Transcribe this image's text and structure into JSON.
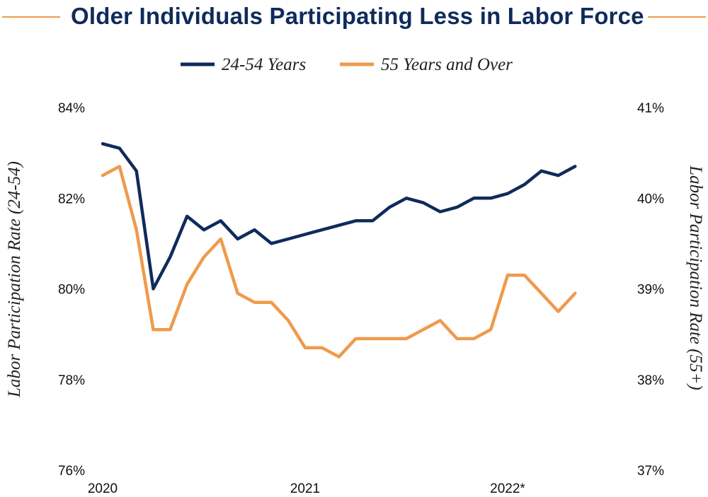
{
  "title": "Older Individuals Participating Less in Labor Force",
  "colors": {
    "title": "#0f2b5b",
    "series_1": "#0f2b5b",
    "series_2": "#ef9a4b",
    "rule": "#ef9a4b"
  },
  "legend": {
    "series_1_label": "24-54 Years",
    "series_2_label": "55 Years and Over"
  },
  "chart_data": {
    "type": "line",
    "title": "Older Individuals Participating Less in Labor Force",
    "xlabel": "",
    "y_left_label": "Labor Participation Rate (24-54)",
    "y_right_label": "Labor Participation Rate (55+)",
    "y_left_ticks": [
      "84%",
      "82%",
      "80%",
      "78%",
      "76%"
    ],
    "y_right_ticks": [
      "41%",
      "40%",
      "39%",
      "38%",
      "37%"
    ],
    "x_ticks": [
      "2020",
      "2021",
      "2022*"
    ],
    "y_left_range": [
      76,
      84
    ],
    "y_right_range": [
      37,
      41
    ],
    "x_range": [
      0,
      30
    ],
    "x_tick_positions": [
      0,
      12,
      24
    ],
    "series": [
      {
        "name": "24-54 Years",
        "axis": "left",
        "values": [
          83.2,
          83.1,
          82.6,
          80.0,
          80.7,
          81.6,
          81.3,
          81.5,
          81.1,
          81.3,
          81.0,
          81.1,
          81.2,
          81.3,
          81.4,
          81.5,
          81.5,
          81.8,
          82.0,
          81.9,
          81.7,
          81.8,
          82.0,
          82.0,
          82.1,
          82.3,
          82.6,
          82.5,
          82.7
        ]
      },
      {
        "name": "55 Years and Over",
        "axis": "right",
        "values": [
          40.25,
          40.35,
          39.65,
          38.55,
          38.55,
          39.05,
          39.35,
          39.55,
          38.95,
          38.85,
          38.85,
          38.65,
          38.35,
          38.35,
          38.25,
          38.45,
          38.45,
          38.45,
          38.45,
          38.55,
          38.65,
          38.45,
          38.45,
          38.55,
          39.15,
          39.15,
          38.95,
          38.75,
          38.95
        ]
      }
    ]
  }
}
